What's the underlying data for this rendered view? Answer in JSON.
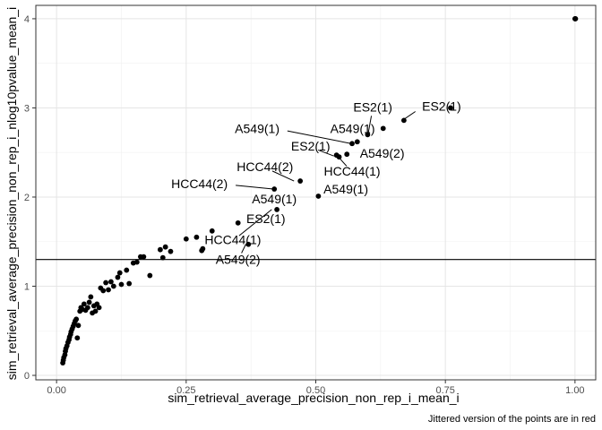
{
  "chart_data": {
    "type": "scatter",
    "xlabel": "sim_retrieval_average_precision_non_rep_i_mean_i",
    "ylabel": "sim_retrieval_average_precision_non_rep_i_nlog10pvalue_mean_i",
    "caption": "Jittered version of the points are in red",
    "xlim": [
      -0.04,
      1.04
    ],
    "ylim": [
      -0.05,
      4.15
    ],
    "x_ticks": [
      0.0,
      0.25,
      0.5,
      0.75,
      1.0
    ],
    "x_tick_labels": [
      "0.00",
      "0.25",
      "0.50",
      "0.75",
      "1.00"
    ],
    "y_ticks": [
      0,
      1,
      2,
      3,
      4
    ],
    "y_tick_labels": [
      "0",
      "1",
      "2",
      "3",
      "4"
    ],
    "hline": 1.3,
    "grid": true,
    "points": [
      {
        "x": 0.012,
        "y": 0.14
      },
      {
        "x": 0.013,
        "y": 0.17
      },
      {
        "x": 0.014,
        "y": 0.2
      },
      {
        "x": 0.016,
        "y": 0.23
      },
      {
        "x": 0.017,
        "y": 0.27
      },
      {
        "x": 0.018,
        "y": 0.3
      },
      {
        "x": 0.02,
        "y": 0.33
      },
      {
        "x": 0.022,
        "y": 0.37
      },
      {
        "x": 0.024,
        "y": 0.4
      },
      {
        "x": 0.025,
        "y": 0.43
      },
      {
        "x": 0.027,
        "y": 0.46
      },
      {
        "x": 0.028,
        "y": 0.49
      },
      {
        "x": 0.03,
        "y": 0.52
      },
      {
        "x": 0.032,
        "y": 0.55
      },
      {
        "x": 0.034,
        "y": 0.58
      },
      {
        "x": 0.036,
        "y": 0.61
      },
      {
        "x": 0.038,
        "y": 0.63
      },
      {
        "x": 0.04,
        "y": 0.42
      },
      {
        "x": 0.042,
        "y": 0.56
      },
      {
        "x": 0.045,
        "y": 0.72
      },
      {
        "x": 0.047,
        "y": 0.76
      },
      {
        "x": 0.05,
        "y": 0.74
      },
      {
        "x": 0.053,
        "y": 0.8
      },
      {
        "x": 0.056,
        "y": 0.73
      },
      {
        "x": 0.06,
        "y": 0.76
      },
      {
        "x": 0.063,
        "y": 0.82
      },
      {
        "x": 0.066,
        "y": 0.88
      },
      {
        "x": 0.069,
        "y": 0.7
      },
      {
        "x": 0.072,
        "y": 0.78
      },
      {
        "x": 0.075,
        "y": 0.72
      },
      {
        "x": 0.078,
        "y": 0.8
      },
      {
        "x": 0.082,
        "y": 0.76
      },
      {
        "x": 0.085,
        "y": 0.98
      },
      {
        "x": 0.09,
        "y": 0.95
      },
      {
        "x": 0.095,
        "y": 1.04
      },
      {
        "x": 0.1,
        "y": 0.96
      },
      {
        "x": 0.105,
        "y": 1.05
      },
      {
        "x": 0.11,
        "y": 1.0
      },
      {
        "x": 0.118,
        "y": 1.1
      },
      {
        "x": 0.122,
        "y": 1.15
      },
      {
        "x": 0.125,
        "y": 1.02
      },
      {
        "x": 0.135,
        "y": 1.18
      },
      {
        "x": 0.14,
        "y": 1.03
      },
      {
        "x": 0.148,
        "y": 1.26
      },
      {
        "x": 0.155,
        "y": 1.27
      },
      {
        "x": 0.162,
        "y": 1.33
      },
      {
        "x": 0.168,
        "y": 1.33
      },
      {
        "x": 0.18,
        "y": 1.12
      },
      {
        "x": 0.2,
        "y": 1.41
      },
      {
        "x": 0.205,
        "y": 1.32
      },
      {
        "x": 0.21,
        "y": 1.44
      },
      {
        "x": 0.22,
        "y": 1.39
      },
      {
        "x": 0.25,
        "y": 1.53
      },
      {
        "x": 0.27,
        "y": 1.55
      },
      {
        "x": 0.28,
        "y": 1.4
      },
      {
        "x": 0.282,
        "y": 1.42
      },
      {
        "x": 0.3,
        "y": 1.62
      },
      {
        "x": 0.35,
        "y": 1.71
      },
      {
        "x": 0.37,
        "y": 1.47
      },
      {
        "x": 0.42,
        "y": 2.09
      },
      {
        "x": 0.425,
        "y": 1.86
      },
      {
        "x": 0.47,
        "y": 2.18
      },
      {
        "x": 0.505,
        "y": 2.01
      },
      {
        "x": 0.54,
        "y": 2.47
      },
      {
        "x": 0.545,
        "y": 2.45
      },
      {
        "x": 0.56,
        "y": 2.48
      },
      {
        "x": 0.57,
        "y": 2.6
      },
      {
        "x": 0.58,
        "y": 2.62
      },
      {
        "x": 0.6,
        "y": 2.7
      },
      {
        "x": 0.63,
        "y": 2.77
      },
      {
        "x": 0.67,
        "y": 2.86
      },
      {
        "x": 0.76,
        "y": 3.0
      },
      {
        "x": 1.0,
        "y": 4.0
      },
      {
        "x": 1.001,
        "y": 4.0
      }
    ],
    "annotations": [
      {
        "text": "ES2(1)",
        "x": 0.667,
        "y": 2.86,
        "tx": 0.705,
        "ty": 2.97,
        "anchor": "start"
      },
      {
        "text": "ES2(1)",
        "x": 0.601,
        "y": 2.71,
        "tx": 0.61,
        "ty": 2.96,
        "anchor": "middle"
      },
      {
        "text": "A549(1)",
        "x": 0.568,
        "y": 2.6,
        "tx": 0.43,
        "ty": 2.72,
        "anchor": "end"
      },
      {
        "text": "A549(1)",
        "x": 0.57,
        "y": 2.62,
        "tx": 0.571,
        "ty": 2.72,
        "anchor": "middle"
      },
      {
        "text": "ES2(1)",
        "x": 0.535,
        "y": 2.46,
        "tx": 0.49,
        "ty": 2.52,
        "anchor": "middle"
      },
      {
        "text": "A549(2)",
        "x": 0.565,
        "y": 2.47,
        "tx": 0.585,
        "ty": 2.44,
        "anchor": "start"
      },
      {
        "text": "HCC44(2)",
        "x": 0.458,
        "y": 2.18,
        "tx": 0.402,
        "ty": 2.29,
        "anchor": "middle"
      },
      {
        "text": "HCC44(1)",
        "x": 0.542,
        "y": 2.46,
        "tx": 0.57,
        "ty": 2.24,
        "anchor": "middle"
      },
      {
        "text": "HCC44(2)",
        "x": 0.418,
        "y": 2.09,
        "tx": 0.33,
        "ty": 2.1,
        "anchor": "end"
      },
      {
        "text": "A549(1)",
        "x": 0.5,
        "y": 2.01,
        "tx": 0.515,
        "ty": 2.04,
        "anchor": "start"
      },
      {
        "text": "A549(1)",
        "x": 0.42,
        "y": 1.86,
        "tx": 0.42,
        "ty": 1.93,
        "anchor": "middle"
      },
      {
        "text": "ES2(1)",
        "x": 0.348,
        "y": 1.71,
        "tx": 0.366,
        "ty": 1.71,
        "anchor": "start"
      },
      {
        "text": "HCC44(1)",
        "x": 0.415,
        "y": 1.86,
        "tx": 0.34,
        "ty": 1.47,
        "anchor": "middle"
      },
      {
        "text": "A549(2)",
        "x": 0.365,
        "y": 1.47,
        "tx": 0.35,
        "ty": 1.25,
        "anchor": "middle"
      }
    ]
  }
}
